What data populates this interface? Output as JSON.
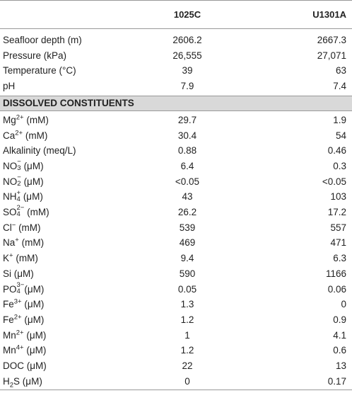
{
  "table": {
    "columns": [
      "1025C",
      "U1301A"
    ],
    "groups": [
      {
        "rows": [
          {
            "label": [
              "Seafloor depth (m)"
            ],
            "values": [
              "2606.2",
              "2667.3"
            ]
          },
          {
            "label": [
              "Pressure (kPa)"
            ],
            "values": [
              "26,555",
              "27,071"
            ]
          },
          {
            "label": [
              "Temperature (°C)"
            ],
            "values": [
              "39",
              "63"
            ]
          },
          {
            "label": [
              "pH"
            ],
            "values": [
              "7.9",
              "7.4"
            ]
          }
        ]
      },
      {
        "title": "DISSOLVED CONSTITUENTS",
        "rows": [
          {
            "label": [
              "Mg",
              {
                "sup": "2+"
              },
              " (mM)"
            ],
            "values": [
              "29.7",
              "1.9"
            ]
          },
          {
            "label": [
              "Ca",
              {
                "sup": "2+"
              },
              " (mM)"
            ],
            "values": [
              "30.4",
              "54"
            ]
          },
          {
            "label": [
              "Alkalinity (meq/L)"
            ],
            "values": [
              "0.88",
              "0.46"
            ]
          },
          {
            "label": [
              "NO",
              {
                "sub": "3",
                "sup": "−"
              },
              " (μM)"
            ],
            "values": [
              "6.4",
              "0.3"
            ]
          },
          {
            "label": [
              "NO",
              {
                "sub": "2",
                "sup": "−"
              },
              " (μM)"
            ],
            "values": [
              "<0.05",
              "<0.05"
            ]
          },
          {
            "label": [
              "NH",
              {
                "sub": "4",
                "sup": "+"
              },
              " (μM)"
            ],
            "values": [
              "43",
              "103"
            ]
          },
          {
            "label": [
              "SO",
              {
                "sub": "4",
                "sup": "2−"
              },
              " (mM)"
            ],
            "values": [
              "26.2",
              "17.2"
            ]
          },
          {
            "label": [
              "Cl",
              {
                "sup": "−"
              },
              " (mM)"
            ],
            "values": [
              "539",
              "557"
            ]
          },
          {
            "label": [
              "Na",
              {
                "sup": "+"
              },
              " (mM)"
            ],
            "values": [
              "469",
              "471"
            ]
          },
          {
            "label": [
              "K",
              {
                "sup": "+"
              },
              " (mM)"
            ],
            "values": [
              "9.4",
              "6.3"
            ]
          },
          {
            "label": [
              "Si (μM)"
            ],
            "values": [
              "590",
              "1166"
            ]
          },
          {
            "label": [
              "PO",
              {
                "sub": "4",
                "sup": "3−"
              },
              "(μM)"
            ],
            "values": [
              "0.05",
              "0.06"
            ]
          },
          {
            "label": [
              "Fe",
              {
                "sup": "3+"
              },
              " (μM)"
            ],
            "values": [
              "1.3",
              "0"
            ]
          },
          {
            "label": [
              "Fe",
              {
                "sup": "2+"
              },
              " (μM)"
            ],
            "values": [
              "1.2",
              "0.9"
            ]
          },
          {
            "label": [
              "Mn",
              {
                "sup": "2+"
              },
              " (μM)"
            ],
            "values": [
              "1",
              "4.1"
            ]
          },
          {
            "label": [
              "Mn",
              {
                "sup": "4+"
              },
              " (μM)"
            ],
            "values": [
              "1.2",
              "0.6"
            ]
          },
          {
            "label": [
              "DOC (μM)"
            ],
            "values": [
              "22",
              "13"
            ]
          },
          {
            "label": [
              "H",
              {
                "sub": "2"
              },
              "S (μM)"
            ],
            "values": [
              "0",
              "0.17"
            ]
          }
        ]
      }
    ]
  }
}
